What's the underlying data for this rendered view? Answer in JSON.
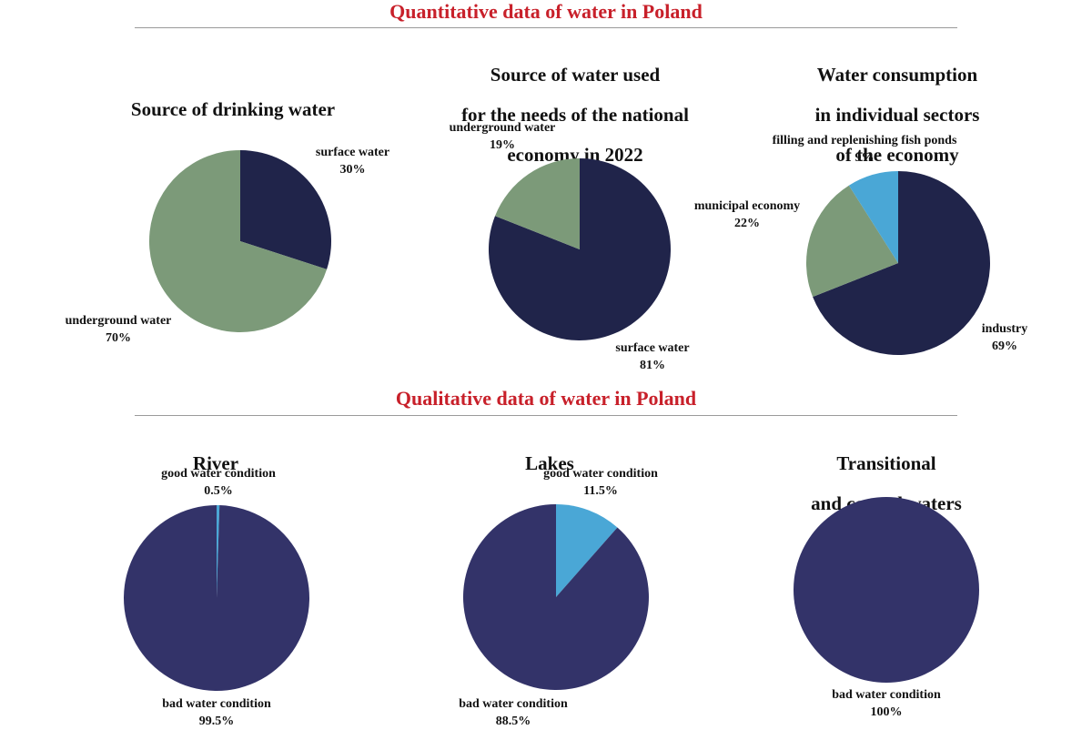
{
  "sections": {
    "quantitative_title": "Quantitative data of water in Poland",
    "qualitative_title": "Qualitative data of water in Poland"
  },
  "colors": {
    "title_red": "#c8202a",
    "navy": "#20244a",
    "sage": "#7c9a79",
    "sky": "#4aa7d6",
    "indigo": "#333369"
  },
  "chart_data": [
    {
      "id": "drinking",
      "type": "pie",
      "title": [
        "Source of drinking water"
      ],
      "slices": [
        {
          "label": "surface water",
          "value": 30,
          "value_label": "30%",
          "color": "#20244a"
        },
        {
          "label": "underground water",
          "value": 70,
          "value_label": "70%",
          "color": "#7c9a79"
        }
      ]
    },
    {
      "id": "economy",
      "type": "pie",
      "title": [
        "Source of water used",
        "for the needs of the national",
        "economy in 2022"
      ],
      "slices": [
        {
          "label": "surface water",
          "value": 81,
          "value_label": "81%",
          "color": "#20244a"
        },
        {
          "label": "underground water",
          "value": 19,
          "value_label": "19%",
          "color": "#7c9a79"
        }
      ]
    },
    {
      "id": "sectors",
      "type": "pie",
      "title": [
        "Water consumption",
        "in individual sectors",
        "of the economy"
      ],
      "slices": [
        {
          "label": "industry",
          "value": 69,
          "value_label": "69%",
          "color": "#20244a"
        },
        {
          "label": "municipal economy",
          "value": 22,
          "value_label": "22%",
          "color": "#7c9a79"
        },
        {
          "label": "filling and replenishing fish ponds",
          "value": 9,
          "value_label": "9%",
          "color": "#4aa7d6"
        }
      ]
    },
    {
      "id": "river",
      "type": "pie",
      "title": [
        "River"
      ],
      "slices": [
        {
          "label": "good water condition",
          "value": 0.5,
          "value_label": "0.5%",
          "color": "#4aa7d6"
        },
        {
          "label": "bad water condition",
          "value": 99.5,
          "value_label": "99.5%",
          "color": "#333369"
        }
      ]
    },
    {
      "id": "lakes",
      "type": "pie",
      "title": [
        "Lakes"
      ],
      "slices": [
        {
          "label": "good water condition",
          "value": 11.5,
          "value_label": "11.5%",
          "color": "#4aa7d6"
        },
        {
          "label": "bad water condition",
          "value": 88.5,
          "value_label": "88.5%",
          "color": "#333369"
        }
      ]
    },
    {
      "id": "coastal",
      "type": "pie",
      "title": [
        "Transitional",
        "and coastal waters"
      ],
      "slices": [
        {
          "label": "bad water condition",
          "value": 100,
          "value_label": "100%",
          "color": "#333369"
        }
      ]
    }
  ]
}
